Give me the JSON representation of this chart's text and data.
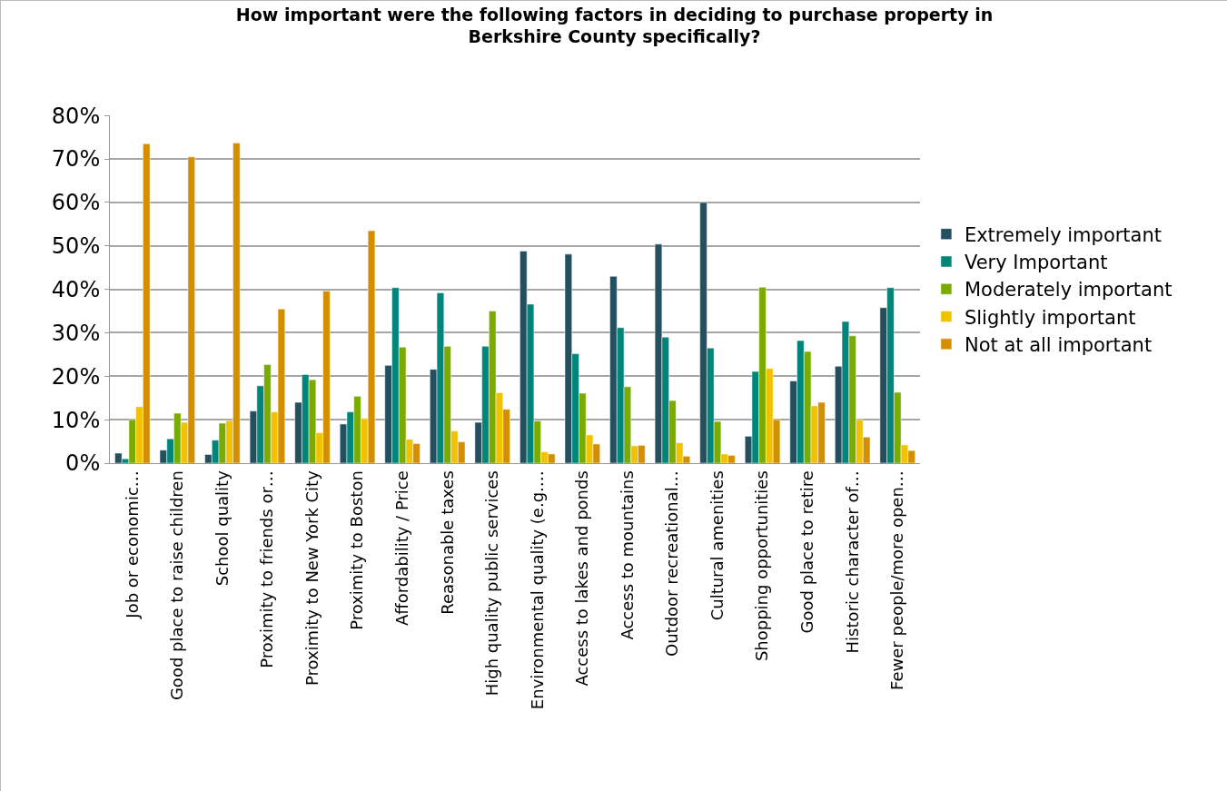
{
  "chart_data": {
    "type": "bar",
    "title": "How important were the following factors in deciding to purchase property in\nBerkshire County specifically?",
    "categories": [
      "Job or economic…",
      "Good place to raise children",
      "School quality",
      "Proximity to friends or…",
      "Proximity to New York City",
      "Proximity to Boston",
      "Affordability / Price",
      "Reasonable taxes",
      "High quality public services",
      "Environmental quality (e.g.…",
      "Access to lakes and ponds",
      "Access to mountains",
      "Outdoor recreational…",
      "Cultural amenities",
      "Shopping opportunities",
      "Good place to retire",
      "Historic character of…",
      "Fewer people/more open…"
    ],
    "series": [
      {
        "name": "Extremely important",
        "color": "#244f5e",
        "values": [
          2.3,
          3,
          2,
          12,
          14,
          9,
          22.5,
          21.6,
          9.4,
          48.8,
          48.1,
          43,
          50.4,
          60,
          6.2,
          18.9,
          22.3,
          35.8
        ]
      },
      {
        "name": "Very Important",
        "color": "#00857a",
        "values": [
          1,
          5.6,
          5.3,
          17.8,
          20.4,
          11.8,
          40.4,
          39.2,
          26.9,
          36.6,
          25.2,
          31.2,
          29,
          26.5,
          21.1,
          28.2,
          32.6,
          40.4
        ]
      },
      {
        "name": "Moderately important",
        "color": "#7aab00",
        "values": [
          10,
          11.5,
          9.2,
          22.7,
          19.2,
          15.4,
          26.7,
          26.9,
          35,
          9.7,
          16.1,
          17.6,
          14.4,
          9.6,
          40.5,
          25.7,
          29.3,
          16.3
        ]
      },
      {
        "name": "Slightly important",
        "color": "#f2c200",
        "values": [
          13,
          9.4,
          9.8,
          11.8,
          7,
          10.3,
          5.5,
          7.4,
          16.2,
          2.6,
          6.5,
          4,
          4.7,
          2.1,
          21.8,
          13.2,
          10,
          4.2
        ]
      },
      {
        "name": "Not at all important",
        "color": "#d48f00",
        "values": [
          73.5,
          70.5,
          73.7,
          35.5,
          39.6,
          53.5,
          4.5,
          4.9,
          12.4,
          2.1,
          4.4,
          4.1,
          1.6,
          1.8,
          10,
          14,
          6,
          2.9
        ]
      }
    ],
    "ylim": [
      0,
      80
    ],
    "yticks": [
      {
        "value": 0,
        "label": "0%"
      },
      {
        "value": 10,
        "label": "10%"
      },
      {
        "value": 20,
        "label": "20%"
      },
      {
        "value": 30,
        "label": "30%"
      },
      {
        "value": 40,
        "label": "40%"
      },
      {
        "value": 50,
        "label": "50%"
      },
      {
        "value": 60,
        "label": "60%"
      },
      {
        "value": 70,
        "label": "70%"
      },
      {
        "value": 80,
        "label": "80%"
      }
    ],
    "grid": "y",
    "legend": "right"
  }
}
